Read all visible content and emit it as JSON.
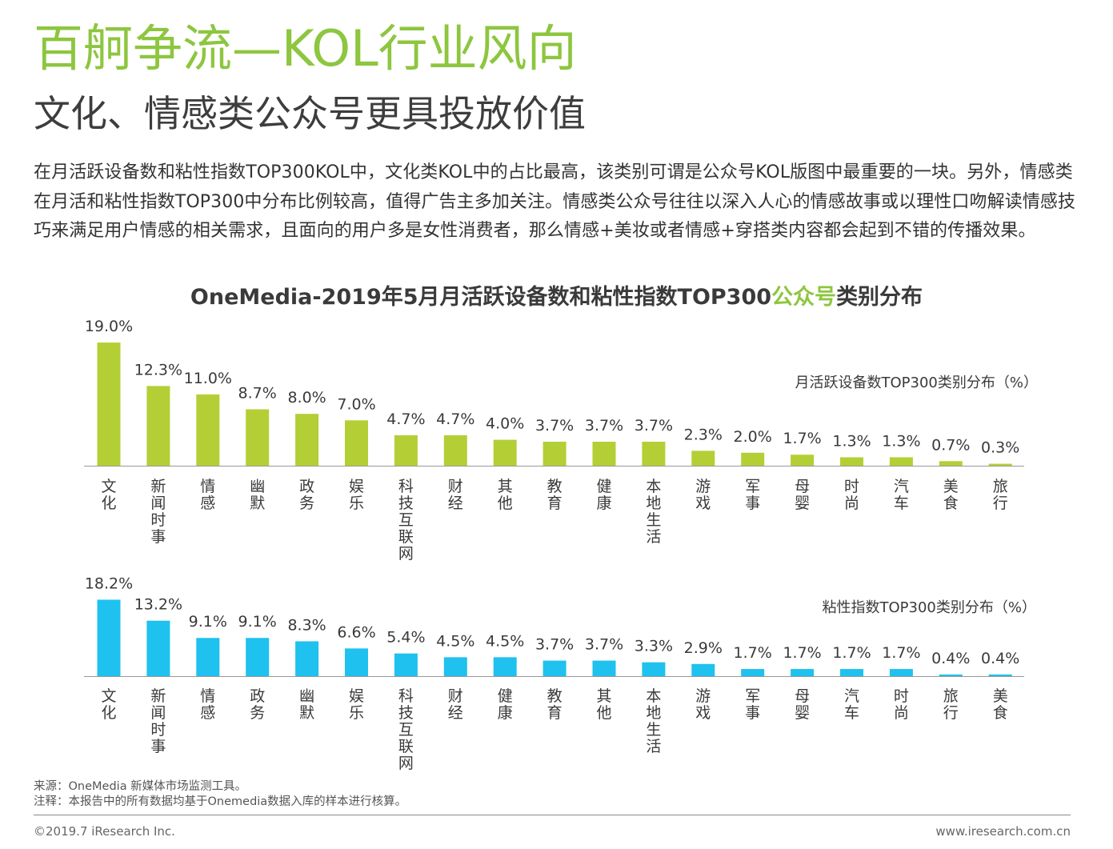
{
  "header": {
    "title": "百舸争流—KOL行业风向",
    "subtitle": "文化、情感类公众号更具投放价值",
    "paragraph": "在月活跃设备数和粘性指数TOP300KOL中，文化类KOL中的占比最高，该类别可谓是公众号KOL版图中最重要的一块。另外，情感类在月活和粘性指数TOP300中分布比例较高，值得广告主多加关注。情感类公众号往往以深入人心的情感故事或以理性口吻解读情感技巧来满足用户情感的相关需求，且面向的用户多是女性消费者，那么情感+美妆或者情感+穿搭类内容都会起到不错的传播效果。"
  },
  "chart_title": {
    "part1": "OneMedia-2019年5月月活跃设备数和粘性指数TOP300",
    "highlight": "公众号",
    "part2": "类别分布"
  },
  "colors": {
    "green": "#b3cf35",
    "blue": "#1fc1ee",
    "title_green": "#8dc63f"
  },
  "chart_data": [
    {
      "type": "bar",
      "title": "月活跃设备数TOP300类别分布（%）",
      "unit": "%",
      "categories": [
        "文化",
        "新闻时事",
        "情感",
        "幽默",
        "政务",
        "娱乐",
        "科技互联网",
        "财经",
        "其他",
        "教育",
        "健康",
        "本地生活",
        "游戏",
        "军事",
        "母婴",
        "时尚",
        "汽车",
        "美食",
        "旅行"
      ],
      "values": [
        19.0,
        12.3,
        11.0,
        8.7,
        8.0,
        7.0,
        4.7,
        4.7,
        4.0,
        3.7,
        3.7,
        3.7,
        2.3,
        2.0,
        1.7,
        1.3,
        1.3,
        0.7,
        0.3
      ],
      "labels": [
        "19.0%",
        "12.3%",
        "11.0%",
        "8.7%",
        "8.0%",
        "7.0%",
        "4.7%",
        "4.7%",
        "4.0%",
        "3.7%",
        "3.7%",
        "3.7%",
        "2.3%",
        "2.0%",
        "1.7%",
        "1.3%",
        "1.3%",
        "0.7%",
        "0.3%"
      ],
      "color": "#b3cf35"
    },
    {
      "type": "bar",
      "title": "粘性指数TOP300类别分布（%）",
      "unit": "%",
      "categories": [
        "文化",
        "新闻时事",
        "情感",
        "政务",
        "幽默",
        "娱乐",
        "科技互联网",
        "财经",
        "健康",
        "教育",
        "其他",
        "本地生活",
        "游戏",
        "军事",
        "母婴",
        "汽车",
        "时尚",
        "旅行",
        "美食"
      ],
      "values": [
        18.2,
        13.2,
        9.1,
        9.1,
        8.3,
        6.6,
        5.4,
        4.5,
        4.5,
        3.7,
        3.7,
        3.3,
        2.9,
        1.7,
        1.7,
        1.7,
        1.7,
        0.4,
        0.4
      ],
      "labels": [
        "18.2%",
        "13.2%",
        "9.1%",
        "9.1%",
        "8.3%",
        "6.6%",
        "5.4%",
        "4.5%",
        "4.5%",
        "3.7%",
        "3.7%",
        "3.3%",
        "2.9%",
        "1.7%",
        "1.7%",
        "1.7%",
        "1.7%",
        "0.4%",
        "0.4%"
      ],
      "color": "#1fc1ee"
    }
  ],
  "footer": {
    "source": "来源：OneMedia 新媒体市场监测工具。",
    "note": "注释：本报告中的所有数据均基于Onemedia数据入库的样本进行核算。",
    "copyright": "©2019.7 iResearch Inc.",
    "website": "www.iresearch.com.cn"
  }
}
